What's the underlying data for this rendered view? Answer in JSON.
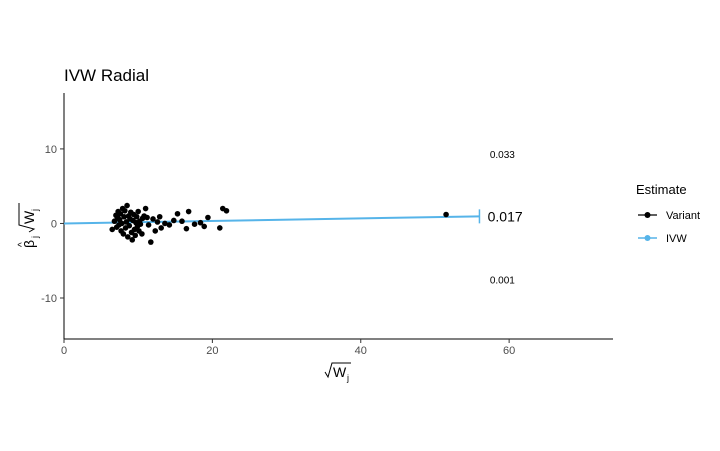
{
  "chart_data": {
    "type": "scatter",
    "title": "IVW Radial",
    "xlabel_base": "W",
    "xlabel_sub": "j",
    "ylabel_beta": "β",
    "ylabel_hat": "^",
    "ylabel_sub": "j",
    "ylabel_w": "W",
    "ylabel_wsub": "j",
    "xlim": [
      0,
      74
    ],
    "ylim": [
      -15.5,
      17.5
    ],
    "x_ticks": [
      0,
      20,
      40,
      60
    ],
    "y_ticks": [
      -10,
      0,
      10
    ],
    "grid": false,
    "legend": {
      "title": "Estimate",
      "position": "right",
      "items": [
        {
          "label": "Variant",
          "color": "#000000"
        },
        {
          "label": "IVW",
          "color": "#56B4E9"
        }
      ]
    },
    "series": [
      {
        "name": "Variant",
        "points": [
          [
            6.5,
            -0.8
          ],
          [
            6.8,
            0.3
          ],
          [
            7.0,
            1.1
          ],
          [
            7.1,
            -0.5
          ],
          [
            7.2,
            0.8
          ],
          [
            7.3,
            1.6
          ],
          [
            7.4,
            -0.2
          ],
          [
            7.5,
            0.5
          ],
          [
            7.6,
            1.3
          ],
          [
            7.7,
            -1.0
          ],
          [
            7.8,
            0.0
          ],
          [
            7.9,
            2.0
          ],
          [
            8.0,
            -1.4
          ],
          [
            8.1,
            0.9
          ],
          [
            8.2,
            1.7
          ],
          [
            8.3,
            -0.6
          ],
          [
            8.4,
            0.2
          ],
          [
            8.5,
            2.4
          ],
          [
            8.6,
            -1.8
          ],
          [
            8.7,
            1.0
          ],
          [
            8.8,
            -0.3
          ],
          [
            8.9,
            0.6
          ],
          [
            9.0,
            1.5
          ],
          [
            9.1,
            -1.2
          ],
          [
            9.2,
            -2.2
          ],
          [
            9.3,
            0.4
          ],
          [
            9.4,
            1.2
          ],
          [
            9.5,
            -0.8
          ],
          [
            9.6,
            -1.6
          ],
          [
            9.7,
            0.1
          ],
          [
            9.8,
            0.9
          ],
          [
            9.9,
            -0.4
          ],
          [
            10.0,
            1.6
          ],
          [
            10.1,
            -1.0
          ],
          [
            10.2,
            0.3
          ],
          [
            10.3,
            -0.1
          ],
          [
            10.5,
            -1.4
          ],
          [
            10.6,
            0.7
          ],
          [
            10.8,
            1.0
          ],
          [
            11.0,
            2.0
          ],
          [
            11.2,
            0.8
          ],
          [
            11.4,
            -0.2
          ],
          [
            11.7,
            -2.5
          ],
          [
            12.0,
            0.6
          ],
          [
            12.3,
            -1.0
          ],
          [
            12.6,
            0.2
          ],
          [
            12.9,
            0.9
          ],
          [
            13.1,
            -0.6
          ],
          [
            13.6,
            0.0
          ],
          [
            14.2,
            -0.2
          ],
          [
            14.8,
            0.4
          ],
          [
            15.3,
            1.3
          ],
          [
            15.9,
            0.3
          ],
          [
            16.5,
            -0.7
          ],
          [
            16.8,
            1.6
          ],
          [
            17.6,
            -0.1
          ],
          [
            18.4,
            0.1
          ],
          [
            18.9,
            -0.4
          ],
          [
            19.4,
            0.8
          ],
          [
            21.0,
            -0.6
          ],
          [
            21.4,
            2.0
          ],
          [
            21.9,
            1.7
          ],
          [
            51.5,
            1.2
          ]
        ]
      },
      {
        "name": "IVW",
        "slope": 0.017,
        "line_x": [
          0,
          56
        ],
        "ci_label_upper": "0.033",
        "ci_label_lower": "0.001",
        "estimate_label": "0.017",
        "ci_upper_y": 9.3,
        "ci_lower_y": -7.5
      }
    ]
  }
}
